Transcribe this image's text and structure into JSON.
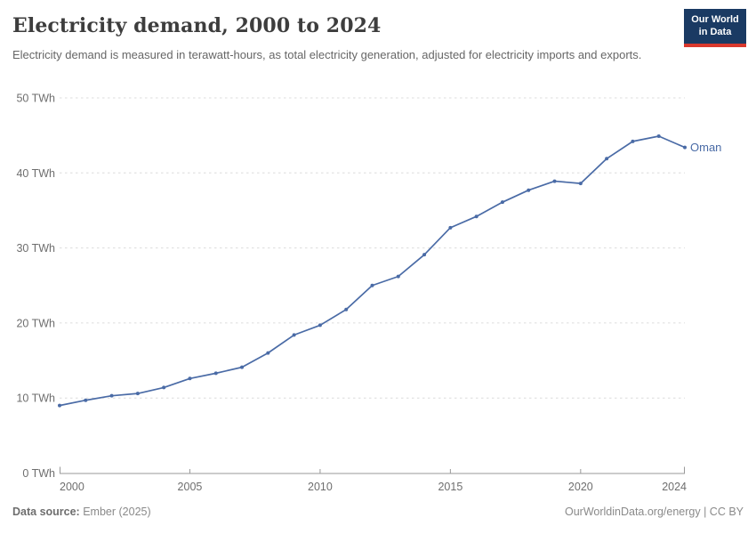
{
  "header": {
    "title": "Electricity demand, 2000 to 2024",
    "subtitle": "Electricity demand is measured in terawatt-hours, as total electricity generation, adjusted for electricity imports and exports.",
    "logo_line1": "Our World",
    "logo_line2": "in Data"
  },
  "chart_data": {
    "type": "line",
    "title": "Electricity demand, 2000 to 2024",
    "ylabel": "",
    "xlabel": "",
    "unit": "TWh",
    "ylim": [
      0,
      50
    ],
    "yticks": [
      0,
      10,
      20,
      30,
      40,
      50
    ],
    "ytick_suffix": " TWh",
    "xticks": [
      2000,
      2005,
      2010,
      2015,
      2020,
      2024
    ],
    "grid": "horizontal-dashed",
    "legend_position": "end-of-line-label",
    "x": [
      2000,
      2001,
      2002,
      2003,
      2004,
      2005,
      2006,
      2007,
      2008,
      2009,
      2010,
      2011,
      2012,
      2013,
      2014,
      2015,
      2016,
      2017,
      2018,
      2019,
      2020,
      2021,
      2022,
      2023,
      2024
    ],
    "series": [
      {
        "name": "Oman",
        "color": "#4a6ba6",
        "values": [
          9.0,
          9.7,
          10.3,
          10.6,
          11.4,
          12.6,
          13.3,
          14.1,
          16.0,
          18.4,
          19.7,
          21.8,
          25.0,
          26.2,
          29.1,
          32.7,
          34.2,
          36.1,
          37.7,
          38.9,
          38.6,
          41.9,
          44.2,
          44.9,
          43.4
        ]
      }
    ]
  },
  "footer": {
    "source_label": "Data source:",
    "source_value": "Ember (2025)",
    "credit": "OurWorldinData.org/energy | CC BY"
  },
  "colors": {
    "accent_line": "#4a6ba6",
    "grid": "#dcdcdc",
    "axis": "#999999",
    "tick_text": "#6e6e6e",
    "title_text": "#3d3d3d",
    "subtitle_text": "#666666",
    "logo_bg": "#1a3a63",
    "logo_red": "#d9382d"
  }
}
